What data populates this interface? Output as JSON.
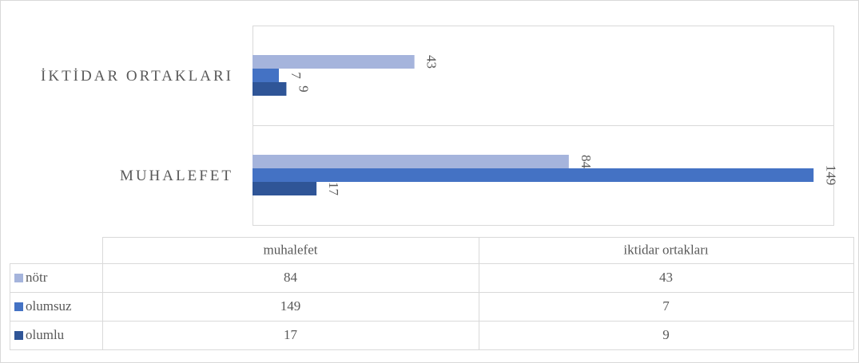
{
  "chart_data": {
    "type": "bar",
    "orientation": "horizontal",
    "axis_labels": [
      "MUHALEFET",
      "İKTİDAR ORTAKLARI"
    ],
    "categories": [
      "muhalefet",
      "iktidar ortakları"
    ],
    "series": [
      {
        "name": "nötr",
        "color": "#a5b4dc",
        "values": [
          84,
          43
        ]
      },
      {
        "name": "olumsuz",
        "color": "#4472c4",
        "values": [
          149,
          7
        ]
      },
      {
        "name": "olumlu",
        "color": "#2f5597",
        "values": [
          17,
          9
        ]
      }
    ],
    "xlim": [
      0,
      160
    ],
    "data_labels": true,
    "data_table": true
  }
}
